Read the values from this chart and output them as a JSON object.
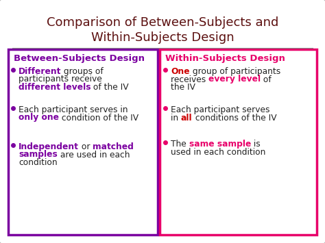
{
  "title_line1": "Comparison of Between-Subjects and",
  "title_line2": "Within-Subjects Design",
  "title_color": "#5C1010",
  "bg_color": "#FFFFFF",
  "left_box_color": "#7B00A0",
  "right_box_color": "#E8006A",
  "left_header": "Between-Subjects Design",
  "right_header": "Within-Subjects Design",
  "left_header_color": "#7B00A0",
  "right_header_color": "#E8006A",
  "purple": "#7B00A0",
  "hot_pink": "#E8006A",
  "dark_red": "#CC0000",
  "dark": "#222222",
  "left_bullets": [
    {
      "segments": [
        [
          "Different",
          "#7B00A0",
          true
        ],
        [
          " groups of\nparticipants receive\n",
          "#222222",
          false
        ],
        [
          "different levels",
          "#7B00A0",
          true
        ],
        [
          " of the IV",
          "#222222",
          false
        ]
      ]
    },
    {
      "segments": [
        [
          "Each participant serves in\n",
          "#222222",
          false
        ],
        [
          "only one",
          "#7B00A0",
          true
        ],
        [
          " condition of the IV",
          "#222222",
          false
        ]
      ]
    },
    {
      "segments": [
        [
          "Independent",
          "#7B00A0",
          true
        ],
        [
          " or ",
          "#222222",
          false
        ],
        [
          "matched\nsamples",
          "#7B00A0",
          true
        ],
        [
          " are used in each\ncondition",
          "#222222",
          false
        ]
      ]
    }
  ],
  "right_bullets": [
    {
      "segments": [
        [
          "One",
          "#CC0000",
          true
        ],
        [
          " group of participants\nreceives ",
          "#222222",
          false
        ],
        [
          "every level",
          "#E8006A",
          true
        ],
        [
          " of\nthe IV",
          "#222222",
          false
        ]
      ]
    },
    {
      "segments": [
        [
          "Each participant serves\nin ",
          "#222222",
          false
        ],
        [
          "all",
          "#CC0000",
          true
        ],
        [
          " conditions of the IV",
          "#222222",
          false
        ]
      ]
    },
    {
      "segments": [
        [
          "The ",
          "#222222",
          false
        ],
        [
          "same sample",
          "#E8006A",
          true
        ],
        [
          " is\nused in each condition",
          "#222222",
          false
        ]
      ]
    }
  ]
}
